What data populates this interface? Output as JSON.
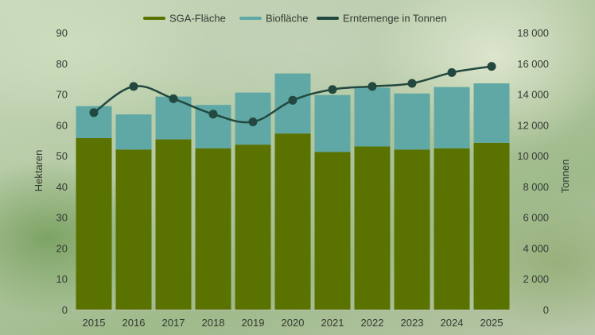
{
  "chart_data": {
    "type": "bar",
    "stacked": true,
    "categories": [
      "2015",
      "2016",
      "2017",
      "2018",
      "2019",
      "2020",
      "2021",
      "2022",
      "2023",
      "2024",
      "2025"
    ],
    "series": [
      {
        "name": "SGA-Fläche",
        "type": "bar",
        "axis": "left",
        "color": "#5a7200",
        "values": [
          55.7,
          52.0,
          55.3,
          52.4,
          53.6,
          57.2,
          51.2,
          53.0,
          52.0,
          52.4,
          54.2
        ]
      },
      {
        "name": "Biofläche",
        "type": "bar",
        "axis": "left",
        "color": "#5fa8a6",
        "values": [
          10.4,
          11.4,
          13.9,
          14.1,
          16.9,
          19.5,
          18.5,
          19.1,
          18.2,
          19.9,
          19.3
        ]
      },
      {
        "name": "Erntemenge in Tonnen",
        "type": "line",
        "axis": "right",
        "color": "#22483f",
        "values": [
          12800,
          14500,
          13700,
          12700,
          12200,
          13600,
          14300,
          14500,
          14700,
          15400,
          15800
        ]
      }
    ],
    "yleft": {
      "label": "Hektaren",
      "ylim": [
        0,
        90
      ],
      "ticks": [
        "0",
        "10",
        "20",
        "30",
        "40",
        "50",
        "60",
        "70",
        "80",
        "90"
      ]
    },
    "yright": {
      "label": "Tonnen",
      "ylim": [
        0,
        18000
      ],
      "ticks": [
        "0",
        "2 000",
        "4 000",
        "6 000",
        "8 000",
        "10 000",
        "12 000",
        "14 000",
        "16 000",
        "18 000"
      ]
    },
    "grid": false,
    "legend": "top-center"
  }
}
